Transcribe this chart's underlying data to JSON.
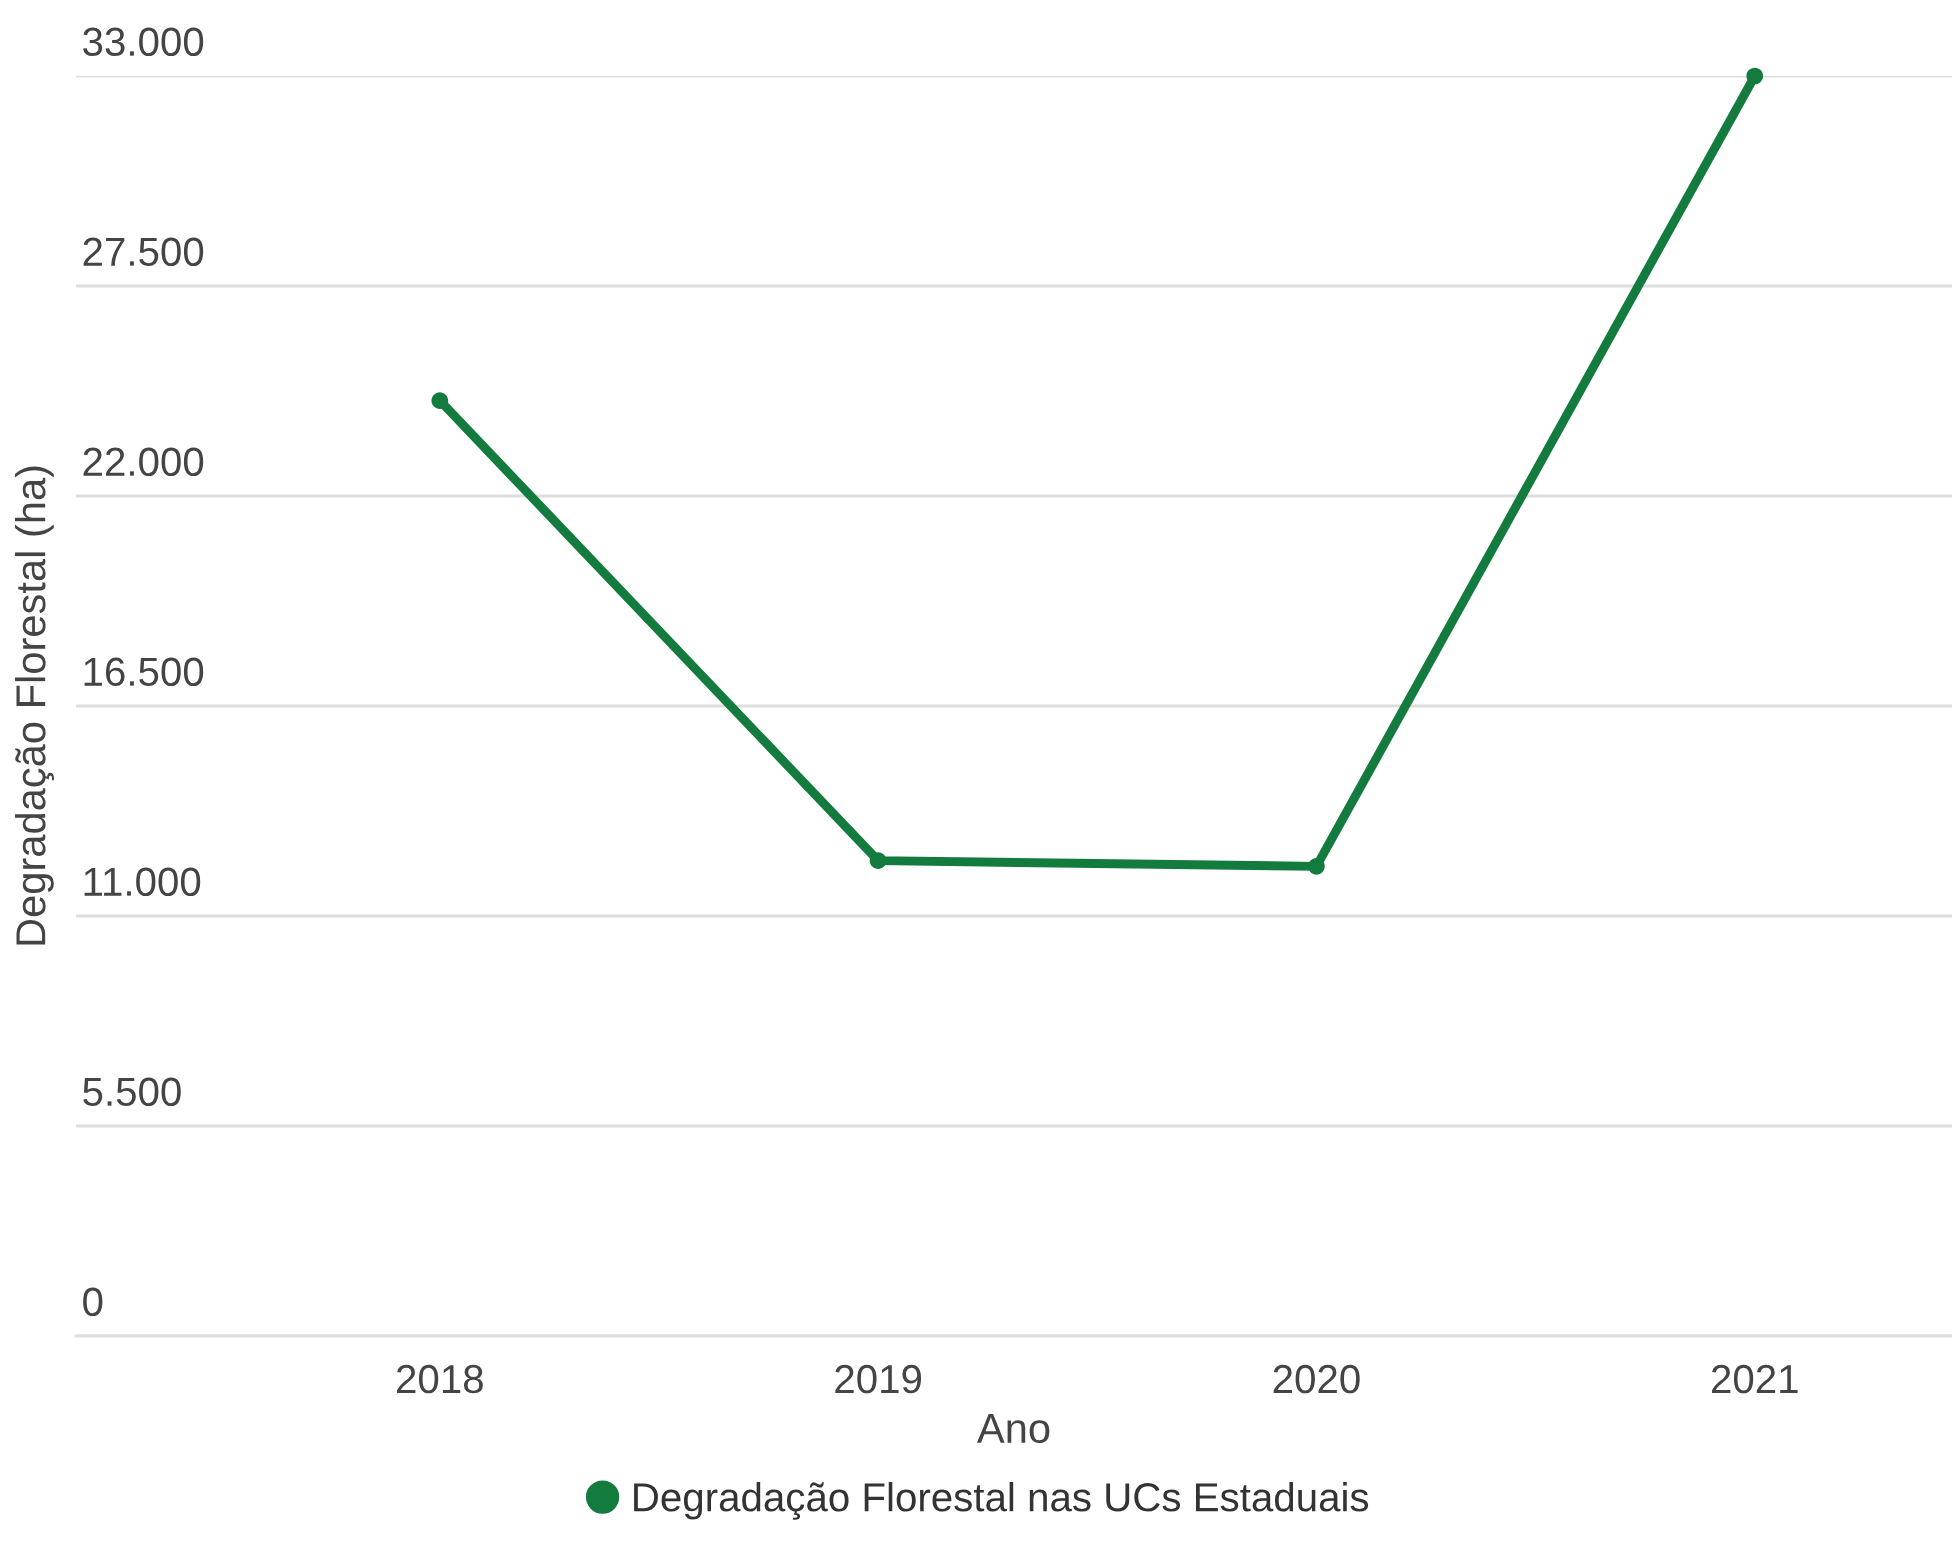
{
  "chart_data": {
    "type": "line",
    "xlabel": "Ano",
    "ylabel": "Degradação Florestal (ha)",
    "categories": [
      "2018",
      "2019",
      "2020",
      "2021"
    ],
    "series": [
      {
        "name": "Degradação Florestal nas UCs Estaduais",
        "color": "#137b3e",
        "values": [
          24500,
          12450,
          12300,
          33000
        ]
      }
    ],
    "ylim": [
      0,
      33000
    ],
    "yticks": [
      0,
      {
        "value": 5500,
        "label": "5.500"
      },
      {
        "value": 11000,
        "label": "11.000"
      },
      {
        "value": 16500,
        "label": "16.500"
      },
      {
        "value": 22000,
        "label": "22.000"
      },
      {
        "value": 27500,
        "label": "27.500"
      },
      {
        "value": 33000,
        "label": "33.000"
      }
    ],
    "grid": "y",
    "legend": "bottom",
    "marker": "circle",
    "line_style": "solid"
  }
}
